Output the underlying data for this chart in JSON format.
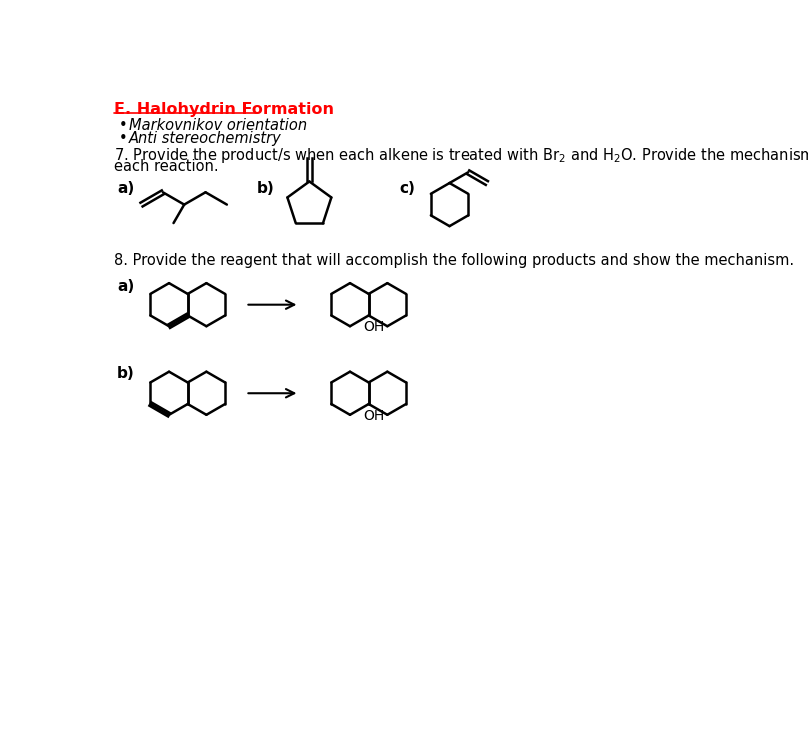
{
  "title": "E. Halohydrin Formation",
  "bullet1": "Markovnikov orientation",
  "bullet2": "Anti stereochemistry",
  "q7_line1": "7. Provide the product/s when each alkene is treated with Br",
  "q7_line1b": " and H",
  "q7_line1c": "O. Provide the mechanism of",
  "q7_line2": "each reaction.",
  "q8_text": "8. Provide the reagent that will accomplish the following products and show the mechanism.",
  "bg_color": "#ffffff",
  "text_color": "#000000",
  "title_color": "#ff0000",
  "lw": 1.8
}
